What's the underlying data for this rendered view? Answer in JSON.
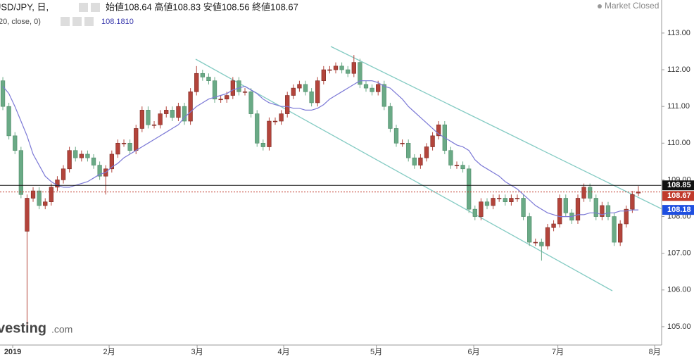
{
  "header": {
    "symbol": "USD/JPY, 日,",
    "ohlc": "始値108.64 高値108.83 安値108.56 終値108.67",
    "indicator": "20, close, 0)",
    "indicator_value": "108.1810",
    "status": "Market Closed",
    "watermark": "vesting",
    "watermark_suffix": ".com"
  },
  "chart_data": {
    "type": "candlestick",
    "up_color": "#b3443b",
    "down_color": "#6aaa86",
    "grid": false,
    "ylim": [
      104.5,
      113.9
    ],
    "yticks": [
      {
        "value": 105,
        "label": "105.00"
      },
      {
        "value": 106,
        "label": "106.00"
      },
      {
        "value": 107,
        "label": "107.00"
      },
      {
        "value": 108,
        "label": "108.00"
      },
      {
        "value": 109,
        "label": "109.00"
      },
      {
        "value": 110,
        "label": "110.00"
      },
      {
        "value": 111,
        "label": "111.00"
      },
      {
        "value": 112,
        "label": "112.00"
      },
      {
        "value": 113,
        "label": "113.00"
      }
    ],
    "xlim": [
      -0.47,
      108.84
    ],
    "xticks": [
      {
        "value": 1.63,
        "label": "2019"
      },
      {
        "value": 17.56,
        "label": "2月"
      },
      {
        "value": 32.1,
        "label": "3月"
      },
      {
        "value": 46.4,
        "label": "4月"
      },
      {
        "value": 61.7,
        "label": "5月"
      },
      {
        "value": 77.8,
        "label": "6月"
      },
      {
        "value": 91.7,
        "label": "7月"
      },
      {
        "value": 107.7,
        "label": "8月"
      }
    ],
    "open": [
      111.7,
      111.0,
      110.2,
      109.8,
      107.6,
      108.5,
      108.7,
      108.3,
      108.4,
      108.8,
      109.0,
      109.3,
      109.8,
      109.6,
      109.7,
      109.6,
      109.4,
      109.1,
      109.3,
      109.7,
      110.0,
      110.0,
      109.8,
      110.4,
      110.9,
      110.5,
      110.5,
      110.8,
      110.9,
      110.7,
      111.0,
      110.6,
      111.4,
      111.9,
      111.8,
      111.7,
      111.2,
      111.2,
      111.3,
      111.7,
      111.4,
      111.4,
      110.8,
      110.0,
      109.9,
      110.6,
      110.6,
      110.8,
      111.3,
      111.5,
      111.6,
      111.4,
      111.1,
      111.7,
      112.0,
      112.0,
      112.1,
      112.0,
      111.9,
      112.2,
      111.6,
      111.5,
      111.4,
      111.6,
      111.0,
      110.4,
      110.0,
      110.0,
      109.6,
      109.4,
      109.6,
      109.9,
      110.2,
      110.5,
      109.8,
      109.4,
      109.4,
      109.3,
      108.2,
      108.0,
      108.4,
      108.3,
      108.5,
      108.5,
      108.4,
      108.5,
      108.5,
      108.0,
      107.3,
      107.3,
      107.2,
      107.7,
      107.8,
      108.5,
      108.1,
      107.9,
      108.5,
      108.8,
      108.5,
      108.0,
      108.3,
      108.0,
      107.3,
      107.8,
      108.2,
      108.64
    ],
    "high": [
      111.8,
      111.1,
      110.3,
      109.9,
      108.6,
      108.8,
      108.8,
      108.5,
      108.9,
      109.1,
      109.4,
      109.9,
      109.9,
      109.8,
      109.8,
      109.7,
      109.5,
      109.4,
      109.8,
      110.1,
      110.1,
      110.1,
      110.5,
      111.0,
      111.0,
      110.6,
      110.9,
      111.0,
      111.0,
      111.1,
      111.1,
      111.5,
      112.1,
      112.0,
      111.9,
      111.8,
      111.3,
      111.4,
      111.8,
      111.8,
      111.5,
      111.5,
      110.9,
      110.1,
      110.7,
      110.7,
      110.9,
      111.4,
      111.6,
      111.7,
      111.7,
      111.5,
      111.8,
      112.1,
      112.1,
      112.2,
      112.2,
      112.1,
      112.4,
      112.3,
      111.7,
      111.6,
      111.7,
      111.7,
      111.1,
      110.5,
      110.1,
      110.1,
      109.7,
      109.7,
      110.0,
      110.3,
      110.6,
      110.6,
      109.9,
      109.5,
      109.5,
      109.4,
      108.3,
      108.5,
      108.5,
      108.6,
      108.6,
      108.6,
      108.6,
      108.6,
      108.6,
      108.1,
      107.4,
      107.4,
      107.8,
      107.9,
      108.6,
      108.6,
      108.2,
      108.6,
      108.9,
      108.9,
      108.6,
      108.4,
      108.4,
      108.1,
      107.9,
      108.3,
      108.7,
      108.83
    ],
    "low": [
      110.9,
      110.1,
      109.7,
      108.5,
      104.95,
      108.4,
      108.2,
      108.2,
      108.3,
      108.7,
      108.9,
      109.2,
      109.5,
      109.5,
      109.5,
      109.3,
      109.0,
      108.6,
      109.2,
      109.6,
      109.9,
      109.7,
      109.7,
      110.3,
      110.4,
      110.4,
      110.4,
      110.7,
      110.6,
      110.6,
      110.5,
      110.5,
      111.3,
      111.7,
      111.6,
      111.1,
      111.1,
      111.1,
      111.2,
      111.3,
      111.3,
      110.7,
      109.9,
      109.8,
      109.8,
      110.5,
      110.5,
      110.7,
      111.2,
      111.4,
      111.3,
      111.0,
      111.0,
      111.6,
      111.9,
      111.9,
      111.9,
      111.8,
      111.8,
      111.5,
      111.4,
      111.3,
      111.3,
      110.9,
      110.3,
      109.9,
      109.9,
      109.5,
      109.3,
      109.3,
      109.5,
      109.8,
      110.1,
      109.7,
      109.3,
      109.3,
      109.2,
      108.1,
      107.9,
      107.9,
      108.2,
      108.2,
      108.4,
      108.3,
      108.3,
      108.4,
      107.9,
      107.2,
      107.2,
      106.8,
      107.1,
      107.6,
      107.7,
      108.0,
      107.8,
      107.8,
      108.4,
      108.4,
      107.9,
      107.9,
      107.9,
      107.2,
      107.2,
      107.7,
      108.1,
      108.56
    ],
    "close": [
      111.0,
      110.2,
      109.8,
      108.6,
      108.5,
      108.7,
      108.3,
      108.4,
      108.8,
      109.0,
      109.3,
      109.8,
      109.6,
      109.7,
      109.6,
      109.4,
      109.1,
      109.3,
      109.7,
      110.0,
      110.0,
      109.8,
      110.4,
      110.9,
      110.5,
      110.5,
      110.8,
      110.9,
      110.7,
      111.0,
      110.6,
      111.4,
      111.9,
      111.8,
      111.7,
      111.2,
      111.2,
      111.3,
      111.7,
      111.4,
      111.4,
      110.8,
      110.0,
      109.9,
      110.6,
      110.6,
      110.8,
      111.3,
      111.5,
      111.6,
      111.4,
      111.1,
      111.7,
      112.0,
      112.0,
      112.1,
      112.0,
      111.9,
      112.2,
      111.6,
      111.5,
      111.4,
      111.6,
      111.0,
      110.4,
      110.0,
      110.0,
      109.6,
      109.4,
      109.6,
      109.9,
      110.2,
      110.5,
      109.8,
      109.4,
      109.4,
      109.3,
      108.2,
      108.0,
      108.4,
      108.3,
      108.5,
      108.5,
      108.4,
      108.5,
      108.5,
      108.0,
      107.3,
      107.3,
      107.2,
      107.7,
      107.8,
      108.5,
      108.1,
      107.9,
      108.5,
      108.8,
      108.5,
      108.0,
      108.3,
      108.0,
      107.3,
      107.8,
      108.2,
      108.6,
      108.67
    ],
    "ma": {
      "color": "#7b78d6",
      "label": "108.18",
      "values": [
        111.55,
        111.35,
        111.0,
        110.6,
        110.2,
        109.7,
        109.4,
        109.1,
        108.95,
        108.85,
        108.8,
        108.8,
        108.85,
        108.9,
        108.95,
        109.05,
        109.15,
        109.2,
        109.35,
        109.45,
        109.6,
        109.7,
        109.8,
        109.9,
        110.0,
        110.1,
        110.2,
        110.3,
        110.4,
        110.5,
        110.7,
        110.85,
        111.0,
        111.1,
        111.2,
        111.25,
        111.3,
        111.35,
        111.45,
        111.5,
        111.55,
        111.45,
        111.35,
        111.2,
        111.1,
        111.05,
        111.0,
        111.0,
        110.95,
        110.95,
        110.9,
        110.9,
        110.95,
        111.05,
        111.2,
        111.3,
        111.4,
        111.5,
        111.6,
        111.7,
        111.7,
        111.7,
        111.65,
        111.55,
        111.5,
        111.35,
        111.2,
        111.0,
        110.85,
        110.7,
        110.55,
        110.4,
        110.25,
        110.15,
        110.05,
        109.95,
        109.9,
        109.8,
        109.55,
        109.4,
        109.3,
        109.2,
        109.1,
        108.95,
        108.85,
        108.75,
        108.6,
        108.45,
        108.3,
        108.2,
        108.1,
        108.05,
        108.0,
        108.0,
        108.0,
        108.05,
        108.05,
        108.1,
        108.1,
        108.05,
        108.1,
        108.1,
        108.15,
        108.15,
        108.18,
        108.181
      ]
    },
    "price_lines": [
      {
        "value": 108.85,
        "label": "108.85",
        "color": "#111111",
        "dashed": false
      },
      {
        "value": 108.67,
        "label": "108.67",
        "color": "#c0392b",
        "dashed": true
      }
    ]
  }
}
